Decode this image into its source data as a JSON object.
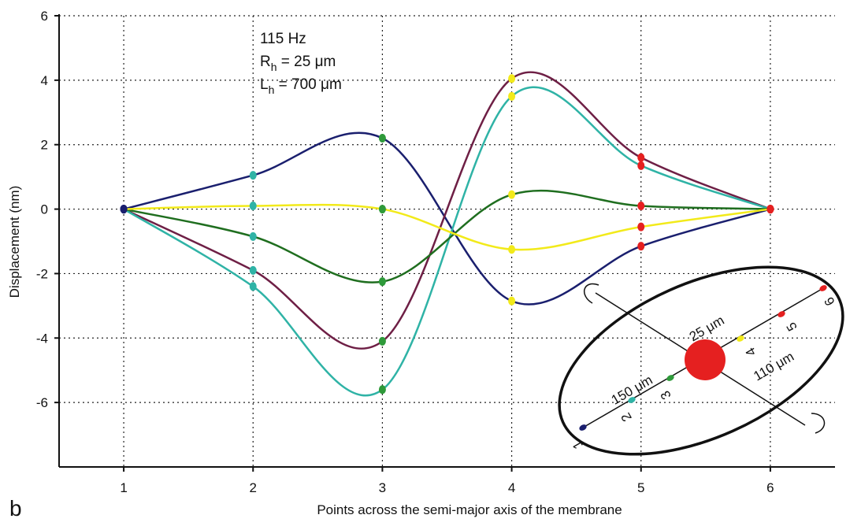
{
  "chart_data": {
    "type": "line",
    "panel_label": "b",
    "xlabel": "Points across the semi-major axis of the membrane",
    "ylabel": "Displacement (nm)",
    "annotations": [
      [
        "115 Hz"
      ],
      [
        "R",
        "h",
        " = 25 μm"
      ],
      [
        "L",
        "h",
        " = 700 μm"
      ]
    ],
    "x": [
      1,
      2,
      3,
      4,
      5,
      6
    ],
    "series": [
      {
        "color": "#1a1f6e",
        "values": [
          0,
          1.05,
          2.2,
          -2.85,
          -1.15,
          0
        ]
      },
      {
        "color": "#6e1f45",
        "values": [
          0,
          -1.9,
          -4.1,
          4.05,
          1.6,
          0
        ]
      },
      {
        "color": "#2fb3a6",
        "values": [
          0,
          -2.4,
          -5.6,
          3.5,
          1.35,
          0
        ]
      },
      {
        "color": "#1f6e1f",
        "values": [
          0,
          -0.85,
          -2.25,
          0.45,
          0.1,
          0
        ]
      },
      {
        "color": "#f2ea1a",
        "values": [
          0,
          0.1,
          0,
          -1.25,
          -0.55,
          0
        ]
      }
    ],
    "marker_colors": [
      "#1a1f6e",
      "#2fb3a6",
      "#2e9a3a",
      "#f2ea1a",
      "#e52020",
      "#e52020"
    ],
    "xlim": [
      0.5,
      6.5
    ],
    "xticks": [
      1,
      2,
      3,
      4,
      5,
      6
    ],
    "ylim": [
      -8,
      6
    ],
    "yticks": [
      -6,
      -4,
      -2,
      0,
      2,
      4,
      6
    ],
    "grid": true,
    "inset": {
      "point_labels": [
        "1",
        "2",
        "3",
        "4",
        "5",
        "6"
      ],
      "dim_labels": [
        "150 μm",
        "25 μm",
        "110 μm"
      ]
    }
  }
}
